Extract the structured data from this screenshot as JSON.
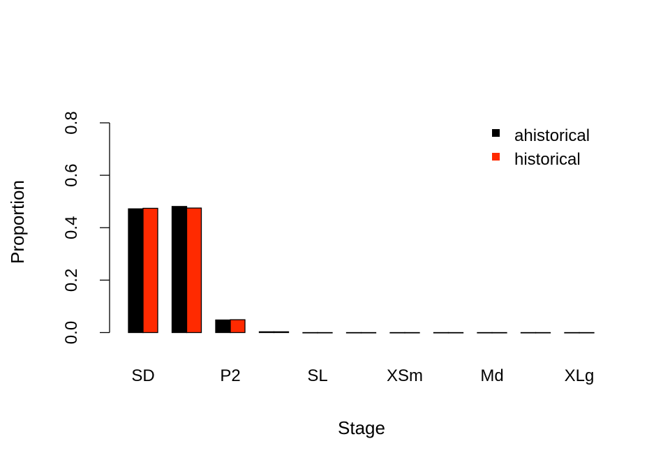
{
  "chart_data": {
    "type": "bar",
    "title": "",
    "xlabel": "Stage",
    "ylabel": "Proportion",
    "ylim": [
      0,
      0.8
    ],
    "yticks": [
      "0.0",
      "0.2",
      "0.4",
      "0.6",
      "0.8"
    ],
    "categories": [
      "SD",
      "",
      "P2",
      "",
      "SL",
      "",
      "XSm",
      "",
      "Md",
      "",
      "XLg"
    ],
    "series": [
      {
        "name": "ahistorical",
        "color": "#000000",
        "values": [
          0.472,
          0.481,
          0.048,
          0.003,
          0,
          0,
          0,
          0,
          0,
          0,
          0
        ]
      },
      {
        "name": "historical",
        "color": "#FF2A00",
        "values": [
          0.474,
          0.475,
          0.049,
          0.003,
          0,
          0,
          0,
          0,
          0,
          0,
          0
        ]
      }
    ],
    "legend": "top-right",
    "grid": false
  }
}
